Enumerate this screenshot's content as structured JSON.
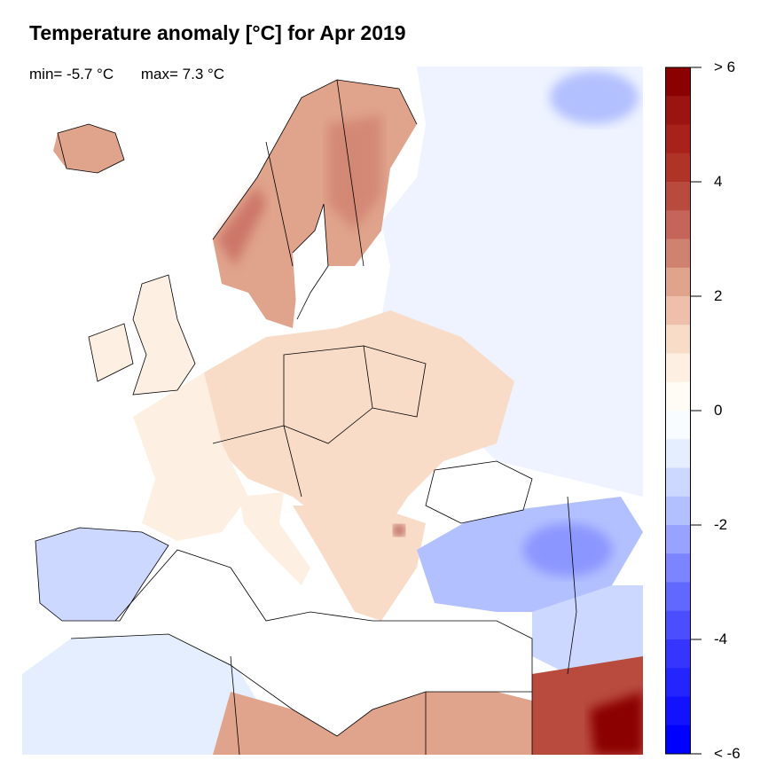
{
  "title": "Temperature anomaly [°C] for Apr 2019",
  "stats": {
    "min": "min= -5.7 °C",
    "max": "max= 7.3 °C"
  },
  "colorbar": {
    "range": [
      -6,
      6
    ],
    "step": 0.5,
    "tick_labels": [
      {
        "value": 6,
        "label": "> 6"
      },
      {
        "value": 4,
        "label": "4"
      },
      {
        "value": 2,
        "label": "2"
      },
      {
        "value": 0,
        "label": "0"
      },
      {
        "value": -2,
        "label": "-2"
      },
      {
        "value": -4,
        "label": "-4"
      },
      {
        "value": -6,
        "label": "< -6"
      }
    ],
    "colors_top_to_bottom": [
      "#8B0000",
      "#9B1411",
      "#A8221B",
      "#B03328",
      "#B84A3E",
      "#C4645A",
      "#D08270",
      "#E0A38C",
      "#EEC0AB",
      "#F8DCC8",
      "#FDEFE2",
      "#FFFCF6",
      "#F8FCFF",
      "#E5EEFF",
      "#CCD8FF",
      "#B3C0FF",
      "#97A3FF",
      "#7C85FF",
      "#6068FF",
      "#4A4EFF",
      "#3535FF",
      "#2424FF",
      "#1212FF",
      "#0000FF"
    ]
  },
  "map": {
    "region": "Europe",
    "regions": [
      {
        "name": "Scandinavia",
        "anomaly": 3.0
      },
      {
        "name": "Iceland",
        "anomaly": 3.0
      },
      {
        "name": "Central Europe",
        "anomaly": 1.5
      },
      {
        "name": "Western Europe",
        "anomaly": 0.8
      },
      {
        "name": "Eastern Europe / Russia",
        "anomaly": -1.0
      },
      {
        "name": "Iberia",
        "anomaly": -1.5
      },
      {
        "name": "Turkey",
        "anomaly": -2.0
      },
      {
        "name": "North Africa",
        "anomaly": 2.5
      },
      {
        "name": "Egypt",
        "anomaly": 6.0
      }
    ]
  }
}
